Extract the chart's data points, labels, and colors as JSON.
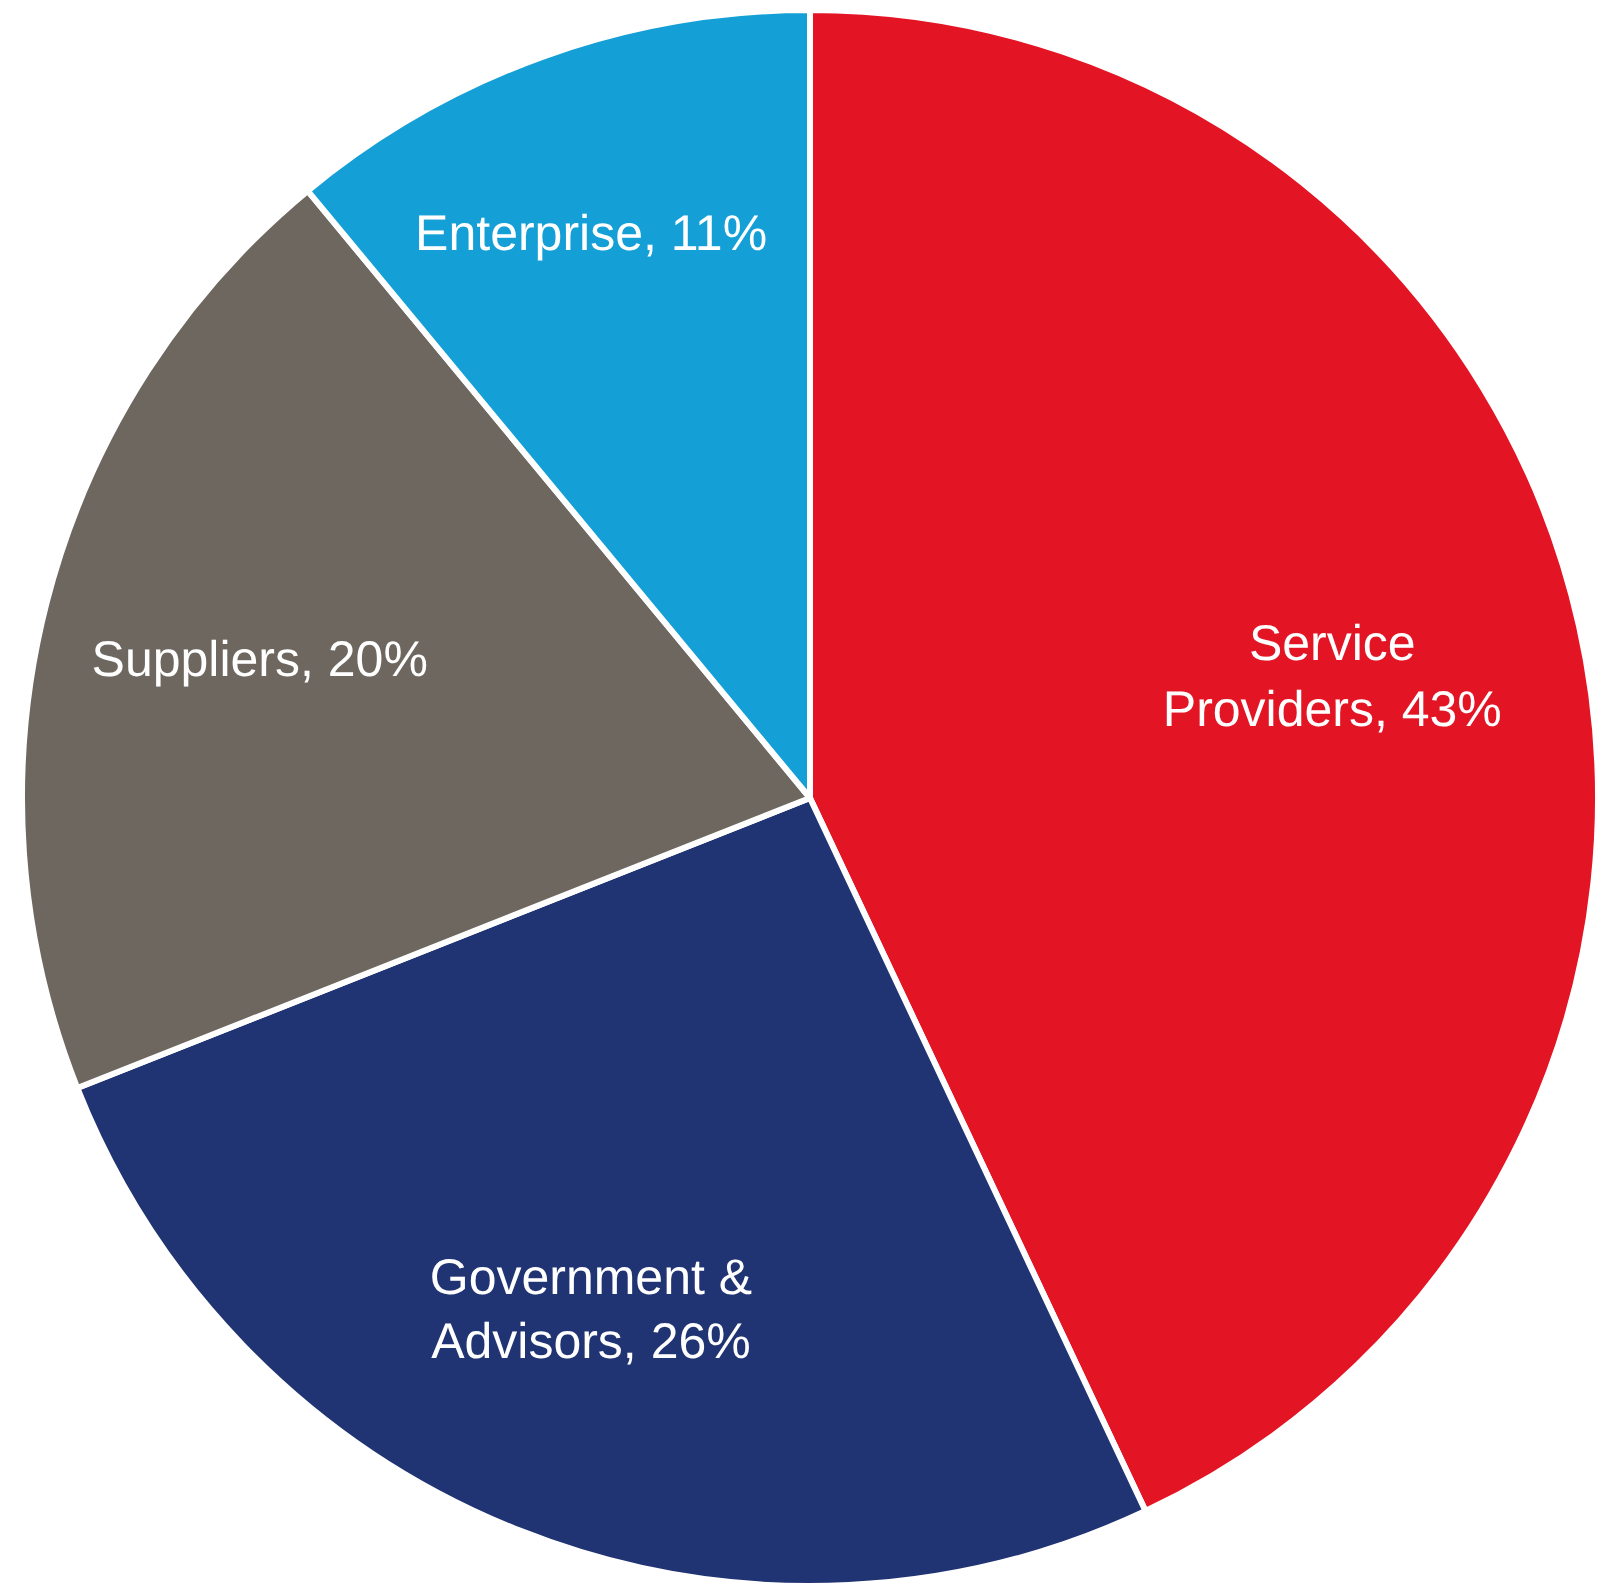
{
  "chart_data": {
    "type": "pie",
    "categories": [
      "Service Providers",
      "Government & Advisors",
      "Suppliers",
      "Enterprise"
    ],
    "values": [
      43,
      26,
      20,
      11
    ],
    "colors": [
      "#e31424",
      "#203372",
      "#6d675f",
      "#149fd6"
    ],
    "value_labels": [
      "43%",
      "26%",
      "20%",
      "11%"
    ]
  }
}
